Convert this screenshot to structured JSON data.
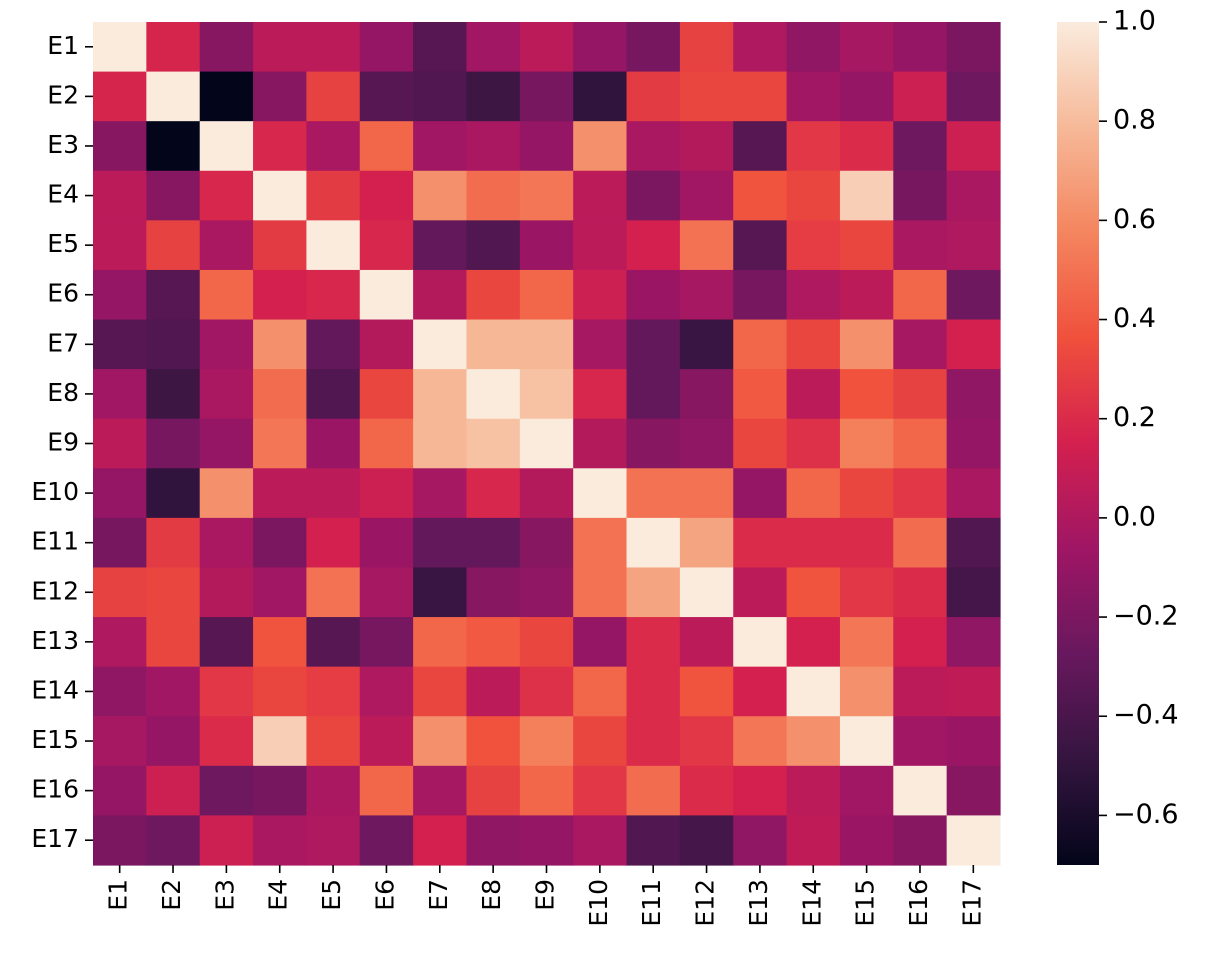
{
  "chart_data": {
    "type": "heatmap",
    "title": "",
    "xlabel": "",
    "ylabel": "",
    "row_labels": [
      "E1",
      "E2",
      "E3",
      "E4",
      "E5",
      "E6",
      "E7",
      "E8",
      "E9",
      "E10",
      "E11",
      "E12",
      "E13",
      "E14",
      "E15",
      "E16",
      "E17"
    ],
    "col_labels": [
      "E1",
      "E2",
      "E3",
      "E4",
      "E5",
      "E6",
      "E7",
      "E8",
      "E9",
      "E10",
      "E11",
      "E12",
      "E13",
      "E14",
      "E15",
      "E16",
      "E17"
    ],
    "colormap": "rocket",
    "vmin": -0.7,
    "vmax": 1.0,
    "colorbar_ticks": [
      -0.6,
      -0.4,
      -0.2,
      0.0,
      0.2,
      0.4,
      0.6,
      0.8,
      1.0
    ],
    "colorbar_tick_labels": [
      "−0.6",
      "−0.4",
      "−0.2",
      "0.0",
      "0.2",
      "0.4",
      "0.6",
      "0.8",
      "1.0"
    ],
    "values": [
      [
        1.0,
        0.17,
        -0.15,
        0.05,
        0.05,
        -0.1,
        -0.35,
        -0.05,
        0.05,
        -0.1,
        -0.22,
        0.3,
        0.0,
        -0.12,
        -0.03,
        -0.1,
        -0.2
      ],
      [
        0.17,
        1.0,
        -0.7,
        -0.15,
        0.3,
        -0.35,
        -0.37,
        -0.45,
        -0.22,
        -0.5,
        0.27,
        0.32,
        0.32,
        -0.05,
        -0.1,
        0.12,
        -0.25
      ],
      [
        -0.15,
        -0.7,
        1.0,
        0.18,
        -0.02,
        0.45,
        -0.05,
        -0.02,
        -0.1,
        0.62,
        -0.02,
        0.02,
        -0.35,
        0.25,
        0.2,
        -0.25,
        0.12
      ],
      [
        0.05,
        -0.15,
        0.18,
        1.0,
        0.27,
        0.15,
        0.62,
        0.48,
        0.52,
        0.05,
        -0.2,
        -0.05,
        0.38,
        0.32,
        0.88,
        -0.22,
        -0.02
      ],
      [
        0.05,
        0.3,
        -0.02,
        0.27,
        1.0,
        0.18,
        -0.3,
        -0.37,
        -0.08,
        0.05,
        0.15,
        0.5,
        -0.35,
        0.28,
        0.32,
        -0.02,
        0.0
      ],
      [
        -0.1,
        -0.35,
        0.45,
        0.15,
        0.18,
        1.0,
        0.02,
        0.32,
        0.45,
        0.12,
        -0.08,
        -0.03,
        -0.22,
        0.0,
        0.05,
        0.45,
        -0.25
      ],
      [
        -0.35,
        -0.37,
        -0.05,
        0.62,
        -0.3,
        0.02,
        1.0,
        0.78,
        0.78,
        -0.03,
        -0.3,
        -0.47,
        0.45,
        0.32,
        0.62,
        -0.03,
        0.15
      ],
      [
        -0.05,
        -0.45,
        -0.02,
        0.48,
        -0.37,
        0.32,
        0.78,
        1.0,
        0.82,
        0.18,
        -0.3,
        -0.15,
        0.4,
        0.05,
        0.37,
        0.3,
        -0.12
      ],
      [
        0.05,
        -0.22,
        -0.1,
        0.52,
        -0.08,
        0.45,
        0.78,
        0.82,
        1.0,
        0.02,
        -0.15,
        -0.12,
        0.32,
        0.22,
        0.55,
        0.45,
        -0.1
      ],
      [
        -0.1,
        -0.5,
        0.62,
        0.05,
        0.05,
        0.12,
        -0.03,
        0.18,
        0.02,
        1.0,
        0.5,
        0.5,
        -0.1,
        0.45,
        0.32,
        0.25,
        -0.02
      ],
      [
        -0.22,
        0.27,
        -0.02,
        -0.2,
        0.15,
        -0.08,
        -0.3,
        -0.3,
        -0.15,
        0.5,
        1.0,
        0.7,
        0.2,
        0.2,
        0.2,
        0.48,
        -0.37
      ],
      [
        0.3,
        0.32,
        0.02,
        -0.05,
        0.5,
        -0.03,
        -0.47,
        -0.15,
        -0.12,
        0.5,
        0.7,
        1.0,
        0.05,
        0.38,
        0.25,
        0.2,
        -0.42
      ],
      [
        0.0,
        0.32,
        -0.35,
        0.38,
        -0.35,
        -0.22,
        0.45,
        0.4,
        0.32,
        -0.1,
        0.2,
        0.05,
        1.0,
        0.15,
        0.52,
        0.15,
        -0.12
      ],
      [
        -0.12,
        -0.05,
        0.25,
        0.32,
        0.28,
        0.0,
        0.32,
        0.05,
        0.22,
        0.45,
        0.2,
        0.38,
        0.15,
        1.0,
        0.62,
        0.05,
        0.07
      ],
      [
        -0.03,
        -0.1,
        0.2,
        0.88,
        0.32,
        0.05,
        0.62,
        0.37,
        0.55,
        0.32,
        0.2,
        0.25,
        0.52,
        0.62,
        1.0,
        -0.05,
        -0.08
      ],
      [
        -0.1,
        0.12,
        -0.25,
        -0.22,
        -0.02,
        0.45,
        -0.03,
        0.3,
        0.45,
        0.25,
        0.48,
        0.2,
        0.15,
        0.05,
        -0.05,
        1.0,
        -0.15
      ],
      [
        -0.2,
        -0.25,
        0.12,
        -0.02,
        0.0,
        -0.25,
        0.15,
        -0.12,
        -0.1,
        -0.02,
        -0.37,
        -0.42,
        -0.12,
        0.07,
        -0.08,
        -0.15,
        1.0
      ]
    ]
  }
}
